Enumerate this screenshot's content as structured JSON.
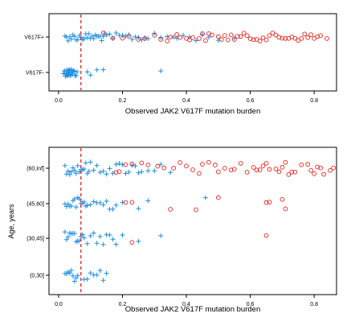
{
  "chart_data": [
    {
      "type": "scatter",
      "title": "",
      "xlabel": "Observed JAK2 V617F mutation burden",
      "ylabel": "",
      "xlim": [
        -0.03,
        0.87
      ],
      "x_ticks": [
        "0.0",
        "0.2",
        "0.4",
        "0.6",
        "0.8"
      ],
      "categories": [
        "V617F-",
        "V617F+"
      ],
      "threshold_x": 0.07,
      "grid": false,
      "legend": "none",
      "marker_colors": {
        "plus": "#1f8fe0",
        "circle": "#e8201e"
      },
      "series": [
        {
          "category": "V617F-",
          "marker": "plus",
          "x": [
            0.015,
            0.018,
            0.02,
            0.022,
            0.024,
            0.025,
            0.026,
            0.027,
            0.028,
            0.029,
            0.03,
            0.03,
            0.031,
            0.032,
            0.033,
            0.034,
            0.035,
            0.036,
            0.037,
            0.038,
            0.04,
            0.041,
            0.043,
            0.045,
            0.047,
            0.05,
            0.052,
            0.055,
            0.058,
            0.09,
            0.1,
            0.12,
            0.14,
            0.32
          ]
        },
        {
          "category": "V617F+",
          "marker": "plus",
          "x": [
            0.02,
            0.025,
            0.03,
            0.035,
            0.04,
            0.045,
            0.05,
            0.055,
            0.06,
            0.065,
            0.07,
            0.075,
            0.08,
            0.085,
            0.09,
            0.095,
            0.1,
            0.105,
            0.11,
            0.115,
            0.12,
            0.125,
            0.13,
            0.135,
            0.14,
            0.145,
            0.15,
            0.16,
            0.17,
            0.18,
            0.19,
            0.2,
            0.21,
            0.22,
            0.23,
            0.24,
            0.25,
            0.26,
            0.27,
            0.28,
            0.3,
            0.32,
            0.34,
            0.36,
            0.37,
            0.39,
            0.41,
            0.43,
            0.45,
            0.47,
            0.5,
            0.55
          ]
        },
        {
          "category": "V617F+",
          "marker": "circle",
          "x": [
            0.14,
            0.17,
            0.2,
            0.22,
            0.25,
            0.27,
            0.3,
            0.32,
            0.34,
            0.35,
            0.37,
            0.38,
            0.4,
            0.41,
            0.42,
            0.44,
            0.45,
            0.46,
            0.47,
            0.48,
            0.5,
            0.51,
            0.52,
            0.53,
            0.54,
            0.55,
            0.56,
            0.57,
            0.58,
            0.59,
            0.6,
            0.61,
            0.62,
            0.63,
            0.64,
            0.65,
            0.66,
            0.67,
            0.68,
            0.69,
            0.7,
            0.71,
            0.72,
            0.73,
            0.74,
            0.75,
            0.76,
            0.77,
            0.78,
            0.79,
            0.8,
            0.81,
            0.82,
            0.84
          ]
        }
      ]
    },
    {
      "type": "scatter",
      "title": "",
      "xlabel": "Observed JAK2 V617F mutation burden",
      "ylabel": "Age, years",
      "xlim": [
        -0.03,
        0.87
      ],
      "x_ticks": [
        "0.0",
        "0.2",
        "0.4",
        "0.6",
        "0.8"
      ],
      "categories": [
        "(0,30]",
        "(30,45]",
        "(45,60]",
        "(60,Inf]"
      ],
      "threshold_x": 0.07,
      "grid": false,
      "legend": "none",
      "marker_colors": {
        "plus": "#1f8fe0",
        "circle": "#e8201e"
      },
      "series": [
        {
          "category": "(0,30]",
          "marker": "plus",
          "x": [
            0.02,
            0.025,
            0.03,
            0.035,
            0.04,
            0.045,
            0.05,
            0.055,
            0.06,
            0.08,
            0.09,
            0.1,
            0.11,
            0.12,
            0.13,
            0.14,
            0.15
          ]
        },
        {
          "category": "(30,45]",
          "marker": "plus",
          "x": [
            0.02,
            0.025,
            0.03,
            0.035,
            0.04,
            0.045,
            0.05,
            0.055,
            0.06,
            0.065,
            0.07,
            0.075,
            0.08,
            0.09,
            0.1,
            0.11,
            0.12,
            0.13,
            0.14,
            0.15,
            0.16,
            0.17,
            0.18,
            0.2,
            0.25,
            0.32
          ]
        },
        {
          "category": "(30,45]",
          "marker": "circle",
          "x": [
            0.23,
            0.65
          ]
        },
        {
          "category": "(45,60]",
          "marker": "plus",
          "x": [
            0.02,
            0.025,
            0.03,
            0.035,
            0.04,
            0.045,
            0.05,
            0.055,
            0.06,
            0.065,
            0.07,
            0.075,
            0.08,
            0.085,
            0.09,
            0.1,
            0.11,
            0.12,
            0.13,
            0.14,
            0.15,
            0.16,
            0.17,
            0.18,
            0.2,
            0.25,
            0.28,
            0.46
          ]
        },
        {
          "category": "(45,60]",
          "marker": "circle",
          "x": [
            0.21,
            0.23,
            0.35,
            0.43,
            0.5,
            0.65,
            0.66,
            0.7,
            0.71
          ]
        },
        {
          "category": "(60,Inf]",
          "marker": "plus",
          "x": [
            0.02,
            0.025,
            0.03,
            0.035,
            0.04,
            0.045,
            0.05,
            0.055,
            0.06,
            0.065,
            0.07,
            0.075,
            0.08,
            0.085,
            0.09,
            0.095,
            0.1,
            0.11,
            0.12,
            0.13,
            0.14,
            0.15,
            0.16,
            0.17,
            0.18,
            0.19,
            0.2,
            0.21,
            0.22,
            0.23,
            0.24,
            0.25,
            0.26,
            0.28,
            0.3,
            0.32,
            0.35
          ]
        },
        {
          "category": "(60,Inf]",
          "marker": "circle",
          "x": [
            0.18,
            0.19,
            0.21,
            0.23,
            0.26,
            0.28,
            0.31,
            0.33,
            0.36,
            0.38,
            0.4,
            0.42,
            0.44,
            0.45,
            0.47,
            0.49,
            0.5,
            0.52,
            0.54,
            0.55,
            0.57,
            0.59,
            0.61,
            0.62,
            0.63,
            0.64,
            0.65,
            0.66,
            0.68,
            0.69,
            0.7,
            0.71,
            0.72,
            0.73,
            0.74,
            0.76,
            0.78,
            0.79,
            0.8,
            0.81,
            0.82,
            0.83,
            0.85,
            0.86
          ]
        }
      ]
    }
  ]
}
